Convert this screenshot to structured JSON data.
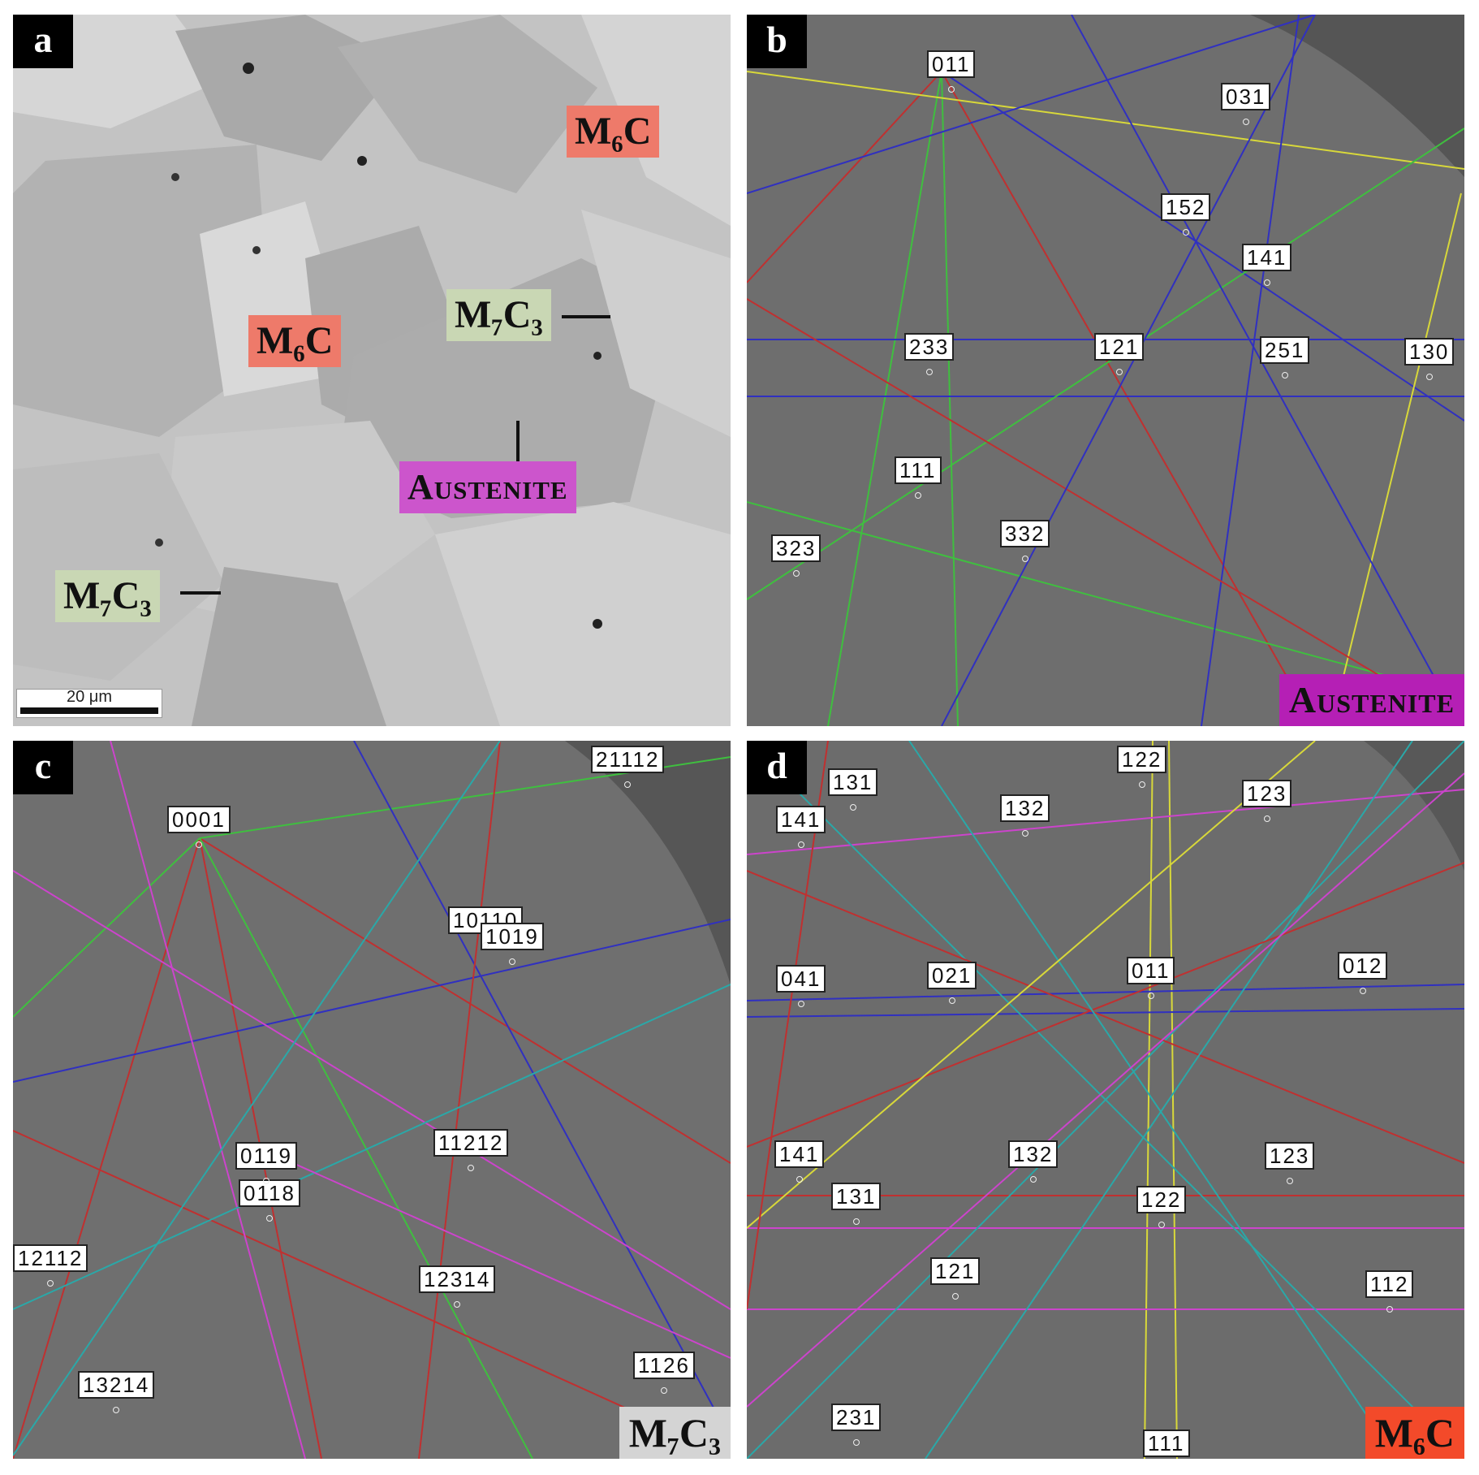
{
  "panels": {
    "a": {
      "letter": "a",
      "labels": {
        "m6c_top": "M₆C",
        "m6c_mid": "M₆C",
        "m7c3_mid": "M₇C₃",
        "austenite": "Austenite",
        "m7c3_low": "M₇C₃"
      },
      "scale_bar": "20 μm"
    },
    "b": {
      "letter": "b",
      "phase": "Austenite",
      "indices": [
        "011",
        "031",
        "152",
        "141",
        "233",
        "121",
        "251",
        "130",
        "111",
        "332",
        "323"
      ]
    },
    "c": {
      "letter": "c",
      "phase": "M₇C₃",
      "indices": [
        "21112",
        "0001",
        "10110",
        "1019",
        "0119",
        "11212",
        "0118",
        "12112",
        "12314",
        "1126",
        "13214"
      ]
    },
    "d": {
      "letter": "d",
      "phase": "M₆C",
      "indices": [
        "122",
        "131",
        "123",
        "141",
        "132",
        "041",
        "021",
        "011",
        "012",
        "141",
        "132",
        "123",
        "131",
        "122",
        "121",
        "112",
        "231",
        "111"
      ]
    }
  },
  "colors": {
    "m6c": "#ee7a6a",
    "m7c3": "#c9d7b4",
    "austenite": "#cc55cc"
  }
}
